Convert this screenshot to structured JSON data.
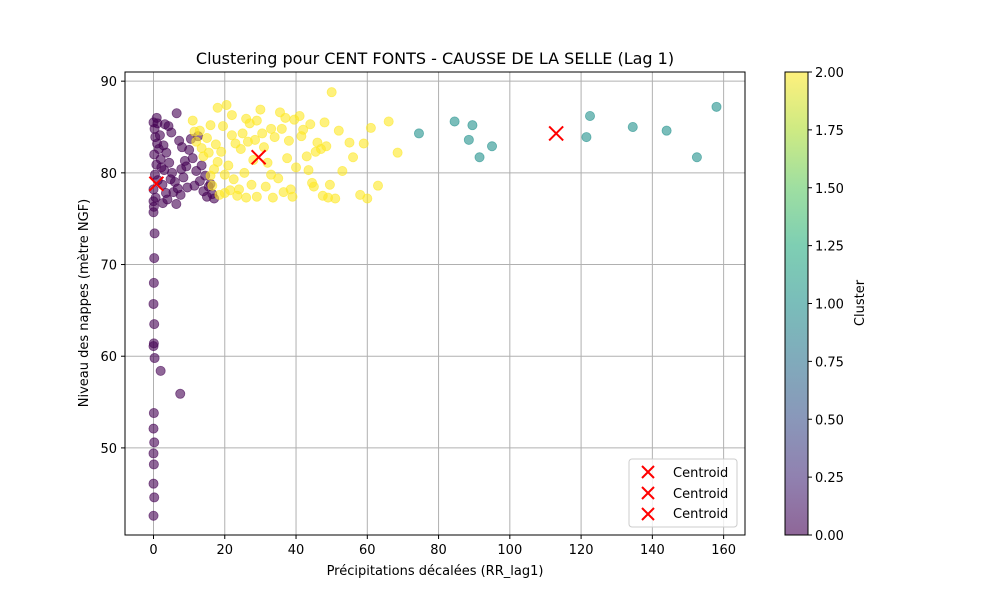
{
  "chart_data": {
    "type": "scatter",
    "title": "Clustering pour CENT FONTS - CAUSSE DE LA SELLE (Lag 1)",
    "xlabel": "Précipitations décalées (RR_lag1)",
    "ylabel": "Niveau des nappes (mètre NGF)",
    "xlim": [
      -8,
      166
    ],
    "ylim": [
      40.5,
      91
    ],
    "x_ticks": [
      0,
      20,
      40,
      60,
      80,
      100,
      120,
      140,
      160
    ],
    "y_ticks": [
      50,
      60,
      70,
      80,
      90
    ],
    "grid": true,
    "colorbar": {
      "label": "Cluster",
      "range": [
        0,
        2
      ],
      "ticks": [
        "0.00",
        "0.25",
        "0.50",
        "0.75",
        "1.00",
        "1.25",
        "1.50",
        "1.75",
        "2.00"
      ],
      "colormap": "viridis"
    },
    "legend": {
      "placement": "lower-right",
      "entries": [
        "Centroid",
        "Centroid",
        "Centroid"
      ]
    },
    "cluster_colors": {
      "0": "#440154",
      "1": "#21918c",
      "2": "#fde725"
    },
    "point_alpha": 0.6,
    "centroid_color": "#ff0000",
    "centroids": [
      {
        "x": 0.8,
        "y": 78.8
      },
      {
        "x": 29.5,
        "y": 81.7
      },
      {
        "x": 113.0,
        "y": 84.3
      }
    ],
    "series": [
      {
        "cluster": 0,
        "points": [
          [
            0,
            85.5
          ],
          [
            0.3,
            84.8
          ],
          [
            0.5,
            83.9
          ],
          [
            1,
            83.2
          ],
          [
            1.5,
            82.6
          ],
          [
            0.2,
            82.0
          ],
          [
            2,
            81.5
          ],
          [
            0.8,
            80.9
          ],
          [
            3,
            80.3
          ],
          [
            0.4,
            79.8
          ],
          [
            1.2,
            79.2
          ],
          [
            2.5,
            78.7
          ],
          [
            0,
            78.2
          ],
          [
            3.5,
            77.8
          ],
          [
            0.6,
            77.3
          ],
          [
            0,
            76.9
          ],
          [
            0.1,
            76.3
          ],
          [
            0,
            75.7
          ],
          [
            1.8,
            84.1
          ],
          [
            2.8,
            83.0
          ],
          [
            3.6,
            82.2
          ],
          [
            4.4,
            81.1
          ],
          [
            5.2,
            80.0
          ],
          [
            6,
            79.0
          ],
          [
            6.8,
            78.3
          ],
          [
            7.6,
            77.6
          ],
          [
            8.4,
            79.5
          ],
          [
            9.2,
            80.7
          ],
          [
            10,
            82.5
          ],
          [
            11,
            81.6
          ],
          [
            12,
            80.2
          ],
          [
            13,
            79.1
          ],
          [
            14,
            78.0
          ],
          [
            15,
            77.4
          ],
          [
            16,
            78.8
          ],
          [
            17,
            77.2
          ],
          [
            10.5,
            83.7
          ],
          [
            12.5,
            84.0
          ],
          [
            9.5,
            78.4
          ],
          [
            4.2,
            85.1
          ],
          [
            6.5,
            86.5
          ],
          [
            5,
            84.4
          ],
          [
            7.2,
            83.5
          ],
          [
            8,
            82.8
          ],
          [
            3.2,
            85.3
          ],
          [
            1.1,
            85.4
          ],
          [
            2.2,
            80.6
          ],
          [
            4.8,
            79.3
          ],
          [
            5.6,
            77.9
          ],
          [
            6.4,
            76.6
          ],
          [
            7.8,
            80.4
          ],
          [
            8.8,
            81.3
          ],
          [
            11.5,
            78.6
          ],
          [
            13.5,
            80.8
          ],
          [
            14.5,
            79.7
          ],
          [
            15.5,
            78.5
          ],
          [
            16.5,
            77.7
          ],
          [
            0.9,
            86.0
          ],
          [
            2.6,
            76.7
          ],
          [
            3.9,
            77.1
          ],
          [
            0.3,
            73.4
          ],
          [
            0.2,
            70.7
          ],
          [
            0.1,
            68.0
          ],
          [
            0,
            65.7
          ],
          [
            0.2,
            63.5
          ],
          [
            0.1,
            61.4
          ],
          [
            0,
            61.1
          ],
          [
            0.3,
            59.8
          ],
          [
            2,
            58.4
          ],
          [
            7.5,
            55.9
          ],
          [
            0.1,
            53.8
          ],
          [
            0,
            52.1
          ],
          [
            0.2,
            50.6
          ],
          [
            0,
            49.4
          ],
          [
            0.1,
            48.2
          ],
          [
            0,
            46.1
          ],
          [
            0.2,
            44.6
          ],
          [
            0,
            42.6
          ]
        ]
      },
      {
        "cluster": 1,
        "points": [
          [
            74.5,
            84.3
          ],
          [
            84.5,
            85.6
          ],
          [
            88.5,
            83.6
          ],
          [
            89.5,
            85.2
          ],
          [
            91.5,
            81.7
          ],
          [
            95,
            82.9
          ],
          [
            121.5,
            83.9
          ],
          [
            122.5,
            86.2
          ],
          [
            134.5,
            85.0
          ],
          [
            144,
            84.6
          ],
          [
            152.5,
            81.7
          ],
          [
            158,
            87.2
          ]
        ]
      },
      {
        "cluster": 2,
        "points": [
          [
            11,
            85.7
          ],
          [
            13,
            84.6
          ],
          [
            15,
            83.8
          ],
          [
            16,
            85.2
          ],
          [
            18,
            87.1
          ],
          [
            20.5,
            87.4
          ],
          [
            22,
            84.1
          ],
          [
            23,
            83.2
          ],
          [
            25,
            84.3
          ],
          [
            27,
            85.4
          ],
          [
            28.5,
            83.6
          ],
          [
            30,
            86.9
          ],
          [
            31,
            82.8
          ],
          [
            32,
            81.1
          ],
          [
            33,
            79.8
          ],
          [
            34,
            83.9
          ],
          [
            35.5,
            86.6
          ],
          [
            36,
            84.8
          ],
          [
            37.5,
            81.6
          ],
          [
            38.5,
            78.2
          ],
          [
            39,
            77.4
          ],
          [
            40,
            80.6
          ],
          [
            41,
            86.2
          ],
          [
            42,
            84.7
          ],
          [
            43,
            81.8
          ],
          [
            44,
            85.3
          ],
          [
            45,
            78.5
          ],
          [
            46,
            83.3
          ],
          [
            47,
            82.6
          ],
          [
            48,
            85.5
          ],
          [
            48.5,
            82.9
          ],
          [
            49,
            77.3
          ],
          [
            49.5,
            78.7
          ],
          [
            50,
            88.8
          ],
          [
            51,
            77.2
          ],
          [
            52,
            84.6
          ],
          [
            53,
            80.2
          ],
          [
            55,
            83.3
          ],
          [
            56,
            81.7
          ],
          [
            58,
            77.6
          ],
          [
            59,
            83.2
          ],
          [
            60,
            77.2
          ],
          [
            61,
            84.9
          ],
          [
            63,
            78.6
          ],
          [
            66,
            85.6
          ],
          [
            68.5,
            82.2
          ],
          [
            19,
            82.3
          ],
          [
            21,
            80.8
          ],
          [
            22.5,
            79.3
          ],
          [
            24,
            78.2
          ],
          [
            26,
            77.3
          ],
          [
            27.5,
            78.7
          ],
          [
            29,
            77.4
          ],
          [
            31.5,
            78.5
          ],
          [
            33.5,
            77.3
          ],
          [
            35,
            79.4
          ],
          [
            36.5,
            77.9
          ],
          [
            17,
            80.4
          ],
          [
            16.5,
            78.6
          ],
          [
            18.5,
            77.6
          ],
          [
            20,
            79.8
          ],
          [
            21.5,
            78.1
          ],
          [
            23.5,
            77.5
          ],
          [
            25.5,
            80.0
          ],
          [
            28,
            81.4
          ],
          [
            24.5,
            82.6
          ],
          [
            26.5,
            83.4
          ],
          [
            30.5,
            84.3
          ],
          [
            14,
            81.8
          ],
          [
            12,
            83.4
          ],
          [
            15.5,
            82.2
          ],
          [
            17.5,
            83.1
          ],
          [
            19.5,
            85.1
          ],
          [
            22,
            86.3
          ],
          [
            26,
            85.9
          ],
          [
            29,
            85.7
          ],
          [
            33,
            84.8
          ],
          [
            37,
            86.0
          ],
          [
            38,
            83.5
          ],
          [
            39.5,
            85.8
          ],
          [
            43.5,
            80.3
          ],
          [
            45.5,
            82.3
          ],
          [
            41.5,
            84.0
          ],
          [
            44.5,
            78.9
          ],
          [
            47.5,
            77.5
          ],
          [
            11.5,
            84.5
          ],
          [
            13.5,
            82.7
          ],
          [
            18,
            81.2
          ],
          [
            20,
            77.8
          ],
          [
            16,
            79.7
          ]
        ]
      }
    ]
  }
}
